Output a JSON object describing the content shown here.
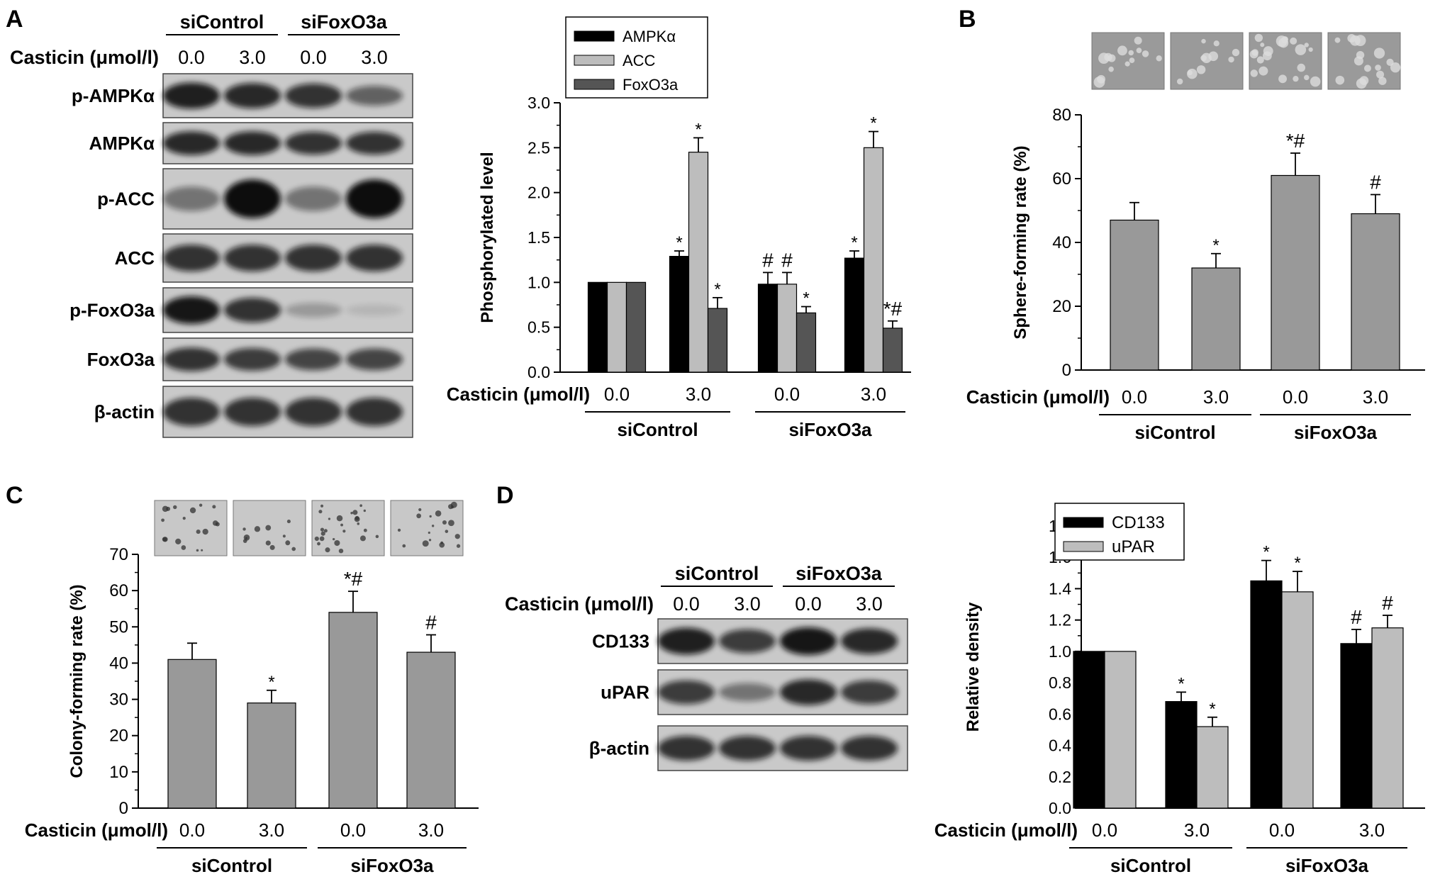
{
  "panels": {
    "A": {
      "label": "A",
      "blot": {
        "groups": [
          "siControl",
          "siFoxO3a"
        ],
        "treatment_label": "Casticin",
        "treatment_unit": "(μmol/l)",
        "doses": [
          "0.0",
          "3.0",
          "0.0",
          "3.0"
        ],
        "rows": [
          {
            "name": "p-AMPKα",
            "intensity": [
              0.9,
              0.85,
              0.8,
              0.55
            ]
          },
          {
            "name": "AMPKα",
            "intensity": [
              0.85,
              0.85,
              0.8,
              0.8
            ]
          },
          {
            "name": "p-ACC",
            "intensity": [
              0.45,
              1.0,
              0.45,
              1.0
            ]
          },
          {
            "name": "ACC",
            "intensity": [
              0.8,
              0.8,
              0.8,
              0.8
            ]
          },
          {
            "name": "p-FoxO3a",
            "intensity": [
              0.95,
              0.8,
              0.25,
              0.08
            ]
          },
          {
            "name": "FoxO3a",
            "intensity": [
              0.8,
              0.75,
              0.7,
              0.7
            ]
          },
          {
            "name": "β-actin",
            "intensity": [
              0.8,
              0.8,
              0.8,
              0.8
            ]
          }
        ]
      }
    },
    "B": {
      "label": "B"
    },
    "C": {
      "label": "C"
    },
    "D": {
      "label": "D",
      "blot": {
        "groups": [
          "siControl",
          "siFoxO3a"
        ],
        "treatment_label": "Casticin",
        "treatment_unit": "(μmol/l)",
        "doses": [
          "0.0",
          "3.0",
          "0.0",
          "3.0"
        ],
        "rows": [
          {
            "name": "CD133",
            "intensity": [
              0.9,
              0.75,
              0.95,
              0.85
            ]
          },
          {
            "name": "uPAR",
            "intensity": [
              0.75,
              0.45,
              0.85,
              0.75
            ]
          },
          {
            "name": "β-actin",
            "intensity": [
              0.8,
              0.8,
              0.8,
              0.8
            ]
          }
        ]
      }
    }
  },
  "chart_data": [
    {
      "id": "A",
      "type": "bar",
      "ylabel": "Phosphorylated level",
      "xlabel": "Casticin (μmol/l)",
      "categories": [
        "0.0",
        "3.0",
        "0.0",
        "3.0"
      ],
      "groups": [
        {
          "name": "siControl",
          "span": [
            0,
            1
          ]
        },
        {
          "name": "siFoxO3a",
          "span": [
            2,
            3
          ]
        }
      ],
      "ylim": [
        0,
        3.0
      ],
      "ytick_step": 0.5,
      "ytick_decimals": 1,
      "legend": "top-left",
      "series": [
        {
          "name": "AMPKα",
          "color": "#000000",
          "values": [
            1.0,
            1.29,
            0.98,
            1.27
          ],
          "errors": [
            0,
            0.06,
            0.13,
            0.08
          ],
          "marks": [
            "",
            "*",
            "#",
            "*"
          ]
        },
        {
          "name": "ACC",
          "color": "#bdbdbd",
          "values": [
            1.0,
            2.45,
            0.98,
            2.5
          ],
          "errors": [
            0,
            0.16,
            0.13,
            0.18
          ],
          "marks": [
            "",
            "*",
            "#",
            "*"
          ]
        },
        {
          "name": "FoxO3a",
          "color": "#555555",
          "values": [
            1.0,
            0.71,
            0.66,
            0.49
          ],
          "errors": [
            0,
            0.12,
            0.07,
            0.08
          ],
          "marks": [
            "",
            "*",
            "*",
            "*#"
          ]
        }
      ]
    },
    {
      "id": "B",
      "type": "bar",
      "ylabel": "Sphere-forming rate (%)",
      "xlabel": "Casticin (μmol/l)",
      "categories": [
        "0.0",
        "3.0",
        "0.0",
        "3.0"
      ],
      "groups": [
        {
          "name": "siControl",
          "span": [
            0,
            1
          ]
        },
        {
          "name": "siFoxO3a",
          "span": [
            2,
            3
          ]
        }
      ],
      "ylim": [
        0,
        80
      ],
      "ytick_step": 20,
      "ytick_decimals": 0,
      "series": [
        {
          "name": "",
          "color": "#999999",
          "values": [
            47,
            32,
            61,
            49
          ],
          "errors": [
            5.5,
            4.5,
            7,
            6
          ],
          "marks": [
            "",
            "*",
            "*#",
            "#"
          ]
        }
      ]
    },
    {
      "id": "C",
      "type": "bar",
      "ylabel": "Colony-forming rate (%)",
      "xlabel": "Casticin (μmol/l)",
      "categories": [
        "0.0",
        "3.0",
        "0.0",
        "3.0"
      ],
      "groups": [
        {
          "name": "siControl",
          "span": [
            0,
            1
          ]
        },
        {
          "name": "siFoxO3a",
          "span": [
            2,
            3
          ]
        }
      ],
      "ylim": [
        0,
        70
      ],
      "ytick_step": 10,
      "ytick_decimals": 0,
      "series": [
        {
          "name": "",
          "color": "#999999",
          "values": [
            41,
            29,
            54,
            43
          ],
          "errors": [
            4.5,
            3.5,
            5.8,
            4.8
          ],
          "marks": [
            "",
            "*",
            "*#",
            "#"
          ]
        }
      ]
    },
    {
      "id": "D",
      "type": "bar",
      "ylabel": "Relative density",
      "xlabel": "Casticin (μmol/l)",
      "categories": [
        "0.0",
        "3.0",
        "0.0",
        "3.0"
      ],
      "groups": [
        {
          "name": "siControl",
          "span": [
            0,
            1
          ]
        },
        {
          "name": "siFoxO3a",
          "span": [
            2,
            3
          ]
        }
      ],
      "ylim": [
        0,
        1.8
      ],
      "ytick_step": 0.2,
      "ytick_decimals": 1,
      "legend": "top-left",
      "series": [
        {
          "name": "CD133",
          "color": "#000000",
          "values": [
            1.0,
            0.68,
            1.45,
            1.05
          ],
          "errors": [
            0,
            0.06,
            0.13,
            0.09
          ],
          "marks": [
            "",
            "*",
            "*",
            "#"
          ]
        },
        {
          "name": "uPAR",
          "color": "#bdbdbd",
          "values": [
            1.0,
            0.52,
            1.38,
            1.15
          ],
          "errors": [
            0,
            0.06,
            0.13,
            0.08
          ],
          "marks": [
            "",
            "*",
            "*",
            "#"
          ]
        }
      ]
    }
  ]
}
